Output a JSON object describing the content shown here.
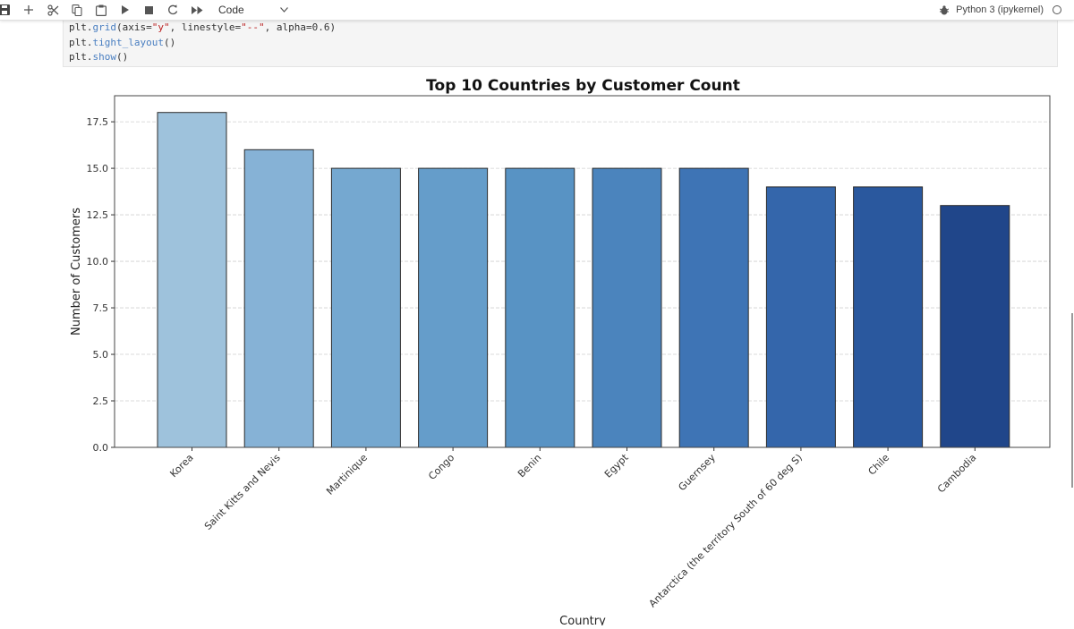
{
  "toolbar": {
    "icons": [
      "save-icon",
      "add-icon",
      "cut-icon",
      "copy-icon",
      "paste-icon",
      "run-icon",
      "stop-icon",
      "restart-icon",
      "fast-forward-icon"
    ],
    "cell_type": "Code",
    "kernel": "Python 3 (ipykernel)"
  },
  "code": {
    "lines": [
      "plt.grid(axis=\"y\", linestyle=\"--\", alpha=0.6)",
      "plt.tight_layout()",
      "plt.show()"
    ]
  },
  "chart_data": {
    "type": "bar",
    "title": "Top 10 Countries by Customer Count",
    "xlabel": "Country",
    "ylabel": "Number of Customers",
    "categories": [
      "Korea",
      "Saint Kitts and Nevis",
      "Martinique",
      "Congo",
      "Benin",
      "Egypt",
      "Guernsey",
      "Antarctica (the territory South of 60 deg S)",
      "Chile",
      "Cambodia"
    ],
    "values": [
      18,
      16,
      15,
      15,
      15,
      15,
      15,
      14,
      14,
      13
    ],
    "ylim": [
      0,
      18.9
    ],
    "yticks": [
      "0.0",
      "2.5",
      "5.0",
      "7.5",
      "10.0",
      "12.5",
      "15.0",
      "17.5"
    ],
    "grid": "y dashed",
    "colors": [
      "#9ec2dc",
      "#86b2d6",
      "#75a8d0",
      "#659dca",
      "#5893c4",
      "#4b84bd",
      "#3e74b5",
      "#3466ab",
      "#2a589e",
      "#20468a"
    ],
    "edge_color": "#2c2c2c",
    "x_tick_rotation": 45
  }
}
